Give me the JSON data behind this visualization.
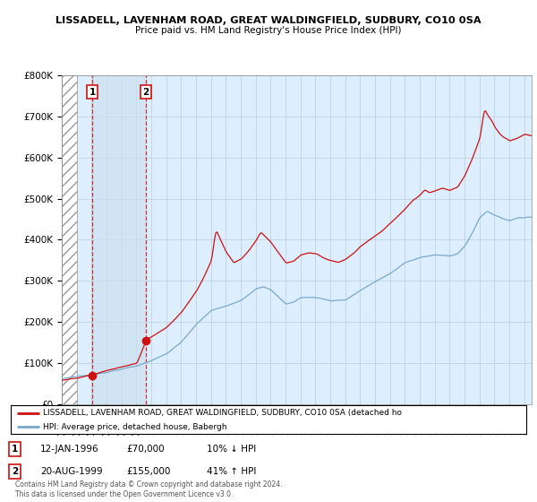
{
  "title_line1": "LISSADELL, LAVENHAM ROAD, GREAT WALDINGFIELD, SUDBURY, CO10 0SA",
  "title_line2": "Price paid vs. HM Land Registry's House Price Index (HPI)",
  "ylim": [
    0,
    800000
  ],
  "yticks": [
    0,
    100000,
    200000,
    300000,
    400000,
    500000,
    600000,
    700000,
    800000
  ],
  "ytick_labels": [
    "£0",
    "£100K",
    "£200K",
    "£300K",
    "£400K",
    "£500K",
    "£600K",
    "£700K",
    "£800K"
  ],
  "xlim_start": 1994.0,
  "xlim_end": 2025.5,
  "hatch_end": 1995.0,
  "blue_shade_start": 1996.04,
  "blue_shade_end": 1999.64,
  "purchase_points": [
    {
      "date": 1996.04,
      "price": 70000,
      "label": "1",
      "pct": "10% ↓ HPI",
      "text_date": "12-JAN-1996",
      "text_price": "£70,000"
    },
    {
      "date": 1999.64,
      "price": 155000,
      "label": "2",
      "pct": "41% ↑ HPI",
      "text_date": "20-AUG-1999",
      "text_price": "£155,000"
    }
  ],
  "red_line_color": "#cc1111",
  "blue_line_color": "#7aa8cc",
  "background_color": "#ffffff",
  "plot_bg_color": "#ddeeff",
  "hatch_color": "#bbbbbb",
  "grid_color": "#bbccdd",
  "legend_text_red": "LISSADELL, LAVENHAM ROAD, GREAT WALDINGFIELD, SUDBURY, CO10 0SA (detached ho",
  "legend_text_blue": "HPI: Average price, detached house, Babergh",
  "footer_text": "Contains HM Land Registry data © Crown copyright and database right 2024.\nThis data is licensed under the Open Government Licence v3.0."
}
